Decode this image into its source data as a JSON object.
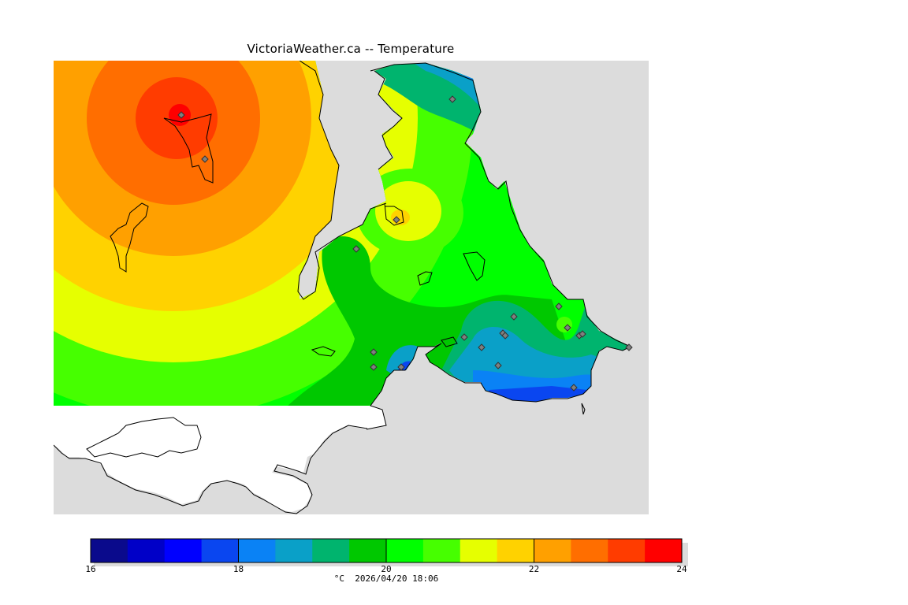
{
  "title": "VictoriaWeather.ca -- Temperature",
  "legend": {
    "unit": "°C",
    "timestamp": "2026/04/20 18:06",
    "min": 16,
    "max": 24,
    "ticks": [
      "16",
      "18",
      "20",
      "22",
      "24"
    ],
    "colors": [
      "#0a0a8c",
      "#0000c8",
      "#0000ff",
      "#0a46f0",
      "#0a82f5",
      "#0aa0c8",
      "#00b46e",
      "#00c800",
      "#00ff00",
      "#46ff00",
      "#e6ff00",
      "#ffd200",
      "#ffa000",
      "#ff6e00",
      "#ff3c00",
      "#ff0000"
    ]
  },
  "colors": {
    "ocean": "#dcdcdc",
    "outside": "#ffffff",
    "coast": "#000000",
    "station_marker": "#808080"
  },
  "map_data": {
    "type": "contour-fill",
    "variable": "Temperature",
    "stations": 20,
    "station_marker": "diamond"
  }
}
